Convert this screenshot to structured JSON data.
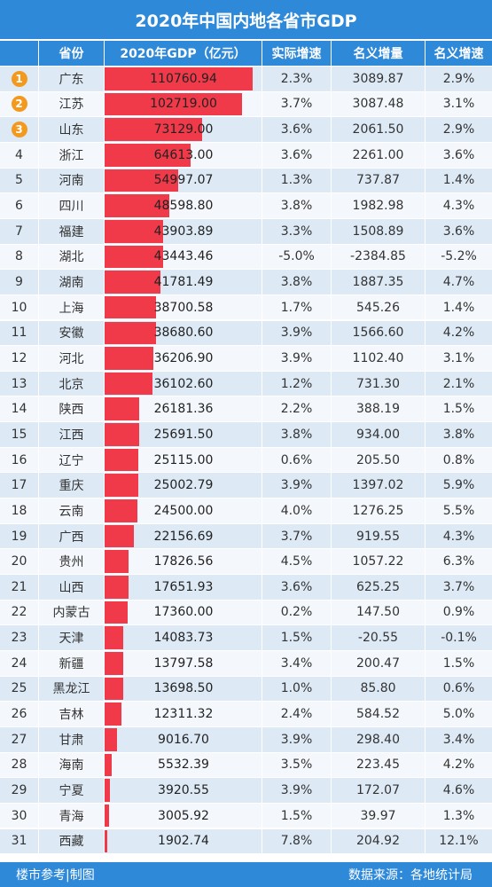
{
  "title": "2020年中国内地各省市GDP",
  "headers": {
    "rank": "",
    "province": "省份",
    "gdp": "2020年GDP（亿元）",
    "real_growth": "实际增速",
    "nominal_increase": "名义增量",
    "nominal_growth": "名义增速"
  },
  "footer": {
    "left": "楼市参考|制图",
    "right": "数据来源：各地统计局"
  },
  "colors": {
    "header": "#2f89d9",
    "bar": "#f03a4a",
    "medal": "#f39a1e",
    "row_odd": "#ddeaf6",
    "row_even": "#f4f8fc"
  },
  "chart_data": {
    "type": "table",
    "title": "2020年中国内地各省市GDP",
    "bar_max": 110760.94,
    "rows": [
      {
        "rank": "1",
        "province": "广东",
        "gdp": "110760.94",
        "real_growth": "2.3%",
        "nominal_increase": "3089.87",
        "nominal_growth": "2.9%"
      },
      {
        "rank": "2",
        "province": "江苏",
        "gdp": "102719.00",
        "real_growth": "3.7%",
        "nominal_increase": "3087.48",
        "nominal_growth": "3.1%"
      },
      {
        "rank": "3",
        "province": "山东",
        "gdp": "73129.00",
        "real_growth": "3.6%",
        "nominal_increase": "2061.50",
        "nominal_growth": "2.9%"
      },
      {
        "rank": "4",
        "province": "浙江",
        "gdp": "64613.00",
        "real_growth": "3.6%",
        "nominal_increase": "2261.00",
        "nominal_growth": "3.6%"
      },
      {
        "rank": "5",
        "province": "河南",
        "gdp": "54997.07",
        "real_growth": "1.3%",
        "nominal_increase": "737.87",
        "nominal_growth": "1.4%"
      },
      {
        "rank": "6",
        "province": "四川",
        "gdp": "48598.80",
        "real_growth": "3.8%",
        "nominal_increase": "1982.98",
        "nominal_growth": "4.3%"
      },
      {
        "rank": "7",
        "province": "福建",
        "gdp": "43903.89",
        "real_growth": "3.3%",
        "nominal_increase": "1508.89",
        "nominal_growth": "3.6%"
      },
      {
        "rank": "8",
        "province": "湖北",
        "gdp": "43443.46",
        "real_growth": "-5.0%",
        "nominal_increase": "-2384.85",
        "nominal_growth": "-5.2%"
      },
      {
        "rank": "9",
        "province": "湖南",
        "gdp": "41781.49",
        "real_growth": "3.8%",
        "nominal_increase": "1887.35",
        "nominal_growth": "4.7%"
      },
      {
        "rank": "10",
        "province": "上海",
        "gdp": "38700.58",
        "real_growth": "1.7%",
        "nominal_increase": "545.26",
        "nominal_growth": "1.4%"
      },
      {
        "rank": "11",
        "province": "安徽",
        "gdp": "38680.60",
        "real_growth": "3.9%",
        "nominal_increase": "1566.60",
        "nominal_growth": "4.2%"
      },
      {
        "rank": "12",
        "province": "河北",
        "gdp": "36206.90",
        "real_growth": "3.9%",
        "nominal_increase": "1102.40",
        "nominal_growth": "3.1%"
      },
      {
        "rank": "13",
        "province": "北京",
        "gdp": "36102.60",
        "real_growth": "1.2%",
        "nominal_increase": "731.30",
        "nominal_growth": "2.1%"
      },
      {
        "rank": "14",
        "province": "陕西",
        "gdp": "26181.36",
        "real_growth": "2.2%",
        "nominal_increase": "388.19",
        "nominal_growth": "1.5%"
      },
      {
        "rank": "15",
        "province": "江西",
        "gdp": "25691.50",
        "real_growth": "3.8%",
        "nominal_increase": "934.00",
        "nominal_growth": "3.8%"
      },
      {
        "rank": "16",
        "province": "辽宁",
        "gdp": "25115.00",
        "real_growth": "0.6%",
        "nominal_increase": "205.50",
        "nominal_growth": "0.8%"
      },
      {
        "rank": "17",
        "province": "重庆",
        "gdp": "25002.79",
        "real_growth": "3.9%",
        "nominal_increase": "1397.02",
        "nominal_growth": "5.9%"
      },
      {
        "rank": "18",
        "province": "云南",
        "gdp": "24500.00",
        "real_growth": "4.0%",
        "nominal_increase": "1276.25",
        "nominal_growth": "5.5%"
      },
      {
        "rank": "19",
        "province": "广西",
        "gdp": "22156.69",
        "real_growth": "3.7%",
        "nominal_increase": "919.55",
        "nominal_growth": "4.3%"
      },
      {
        "rank": "20",
        "province": "贵州",
        "gdp": "17826.56",
        "real_growth": "4.5%",
        "nominal_increase": "1057.22",
        "nominal_growth": "6.3%"
      },
      {
        "rank": "21",
        "province": "山西",
        "gdp": "17651.93",
        "real_growth": "3.6%",
        "nominal_increase": "625.25",
        "nominal_growth": "3.7%"
      },
      {
        "rank": "22",
        "province": "内蒙古",
        "gdp": "17360.00",
        "real_growth": "0.2%",
        "nominal_increase": "147.50",
        "nominal_growth": "0.9%"
      },
      {
        "rank": "23",
        "province": "天津",
        "gdp": "14083.73",
        "real_growth": "1.5%",
        "nominal_increase": "-20.55",
        "nominal_growth": "-0.1%"
      },
      {
        "rank": "24",
        "province": "新疆",
        "gdp": "13797.58",
        "real_growth": "3.4%",
        "nominal_increase": "200.47",
        "nominal_growth": "1.5%"
      },
      {
        "rank": "25",
        "province": "黑龙江",
        "gdp": "13698.50",
        "real_growth": "1.0%",
        "nominal_increase": "85.80",
        "nominal_growth": "0.6%"
      },
      {
        "rank": "26",
        "province": "吉林",
        "gdp": "12311.32",
        "real_growth": "2.4%",
        "nominal_increase": "584.52",
        "nominal_growth": "5.0%"
      },
      {
        "rank": "27",
        "province": "甘肃",
        "gdp": "9016.70",
        "real_growth": "3.9%",
        "nominal_increase": "298.40",
        "nominal_growth": "3.4%"
      },
      {
        "rank": "28",
        "province": "海南",
        "gdp": "5532.39",
        "real_growth": "3.5%",
        "nominal_increase": "223.45",
        "nominal_growth": "4.2%"
      },
      {
        "rank": "29",
        "province": "宁夏",
        "gdp": "3920.55",
        "real_growth": "3.9%",
        "nominal_increase": "172.07",
        "nominal_growth": "4.6%"
      },
      {
        "rank": "30",
        "province": "青海",
        "gdp": "3005.92",
        "real_growth": "1.5%",
        "nominal_increase": "39.97",
        "nominal_growth": "1.3%"
      },
      {
        "rank": "31",
        "province": "西藏",
        "gdp": "1902.74",
        "real_growth": "7.8%",
        "nominal_increase": "204.92",
        "nominal_growth": "12.1%"
      }
    ]
  }
}
